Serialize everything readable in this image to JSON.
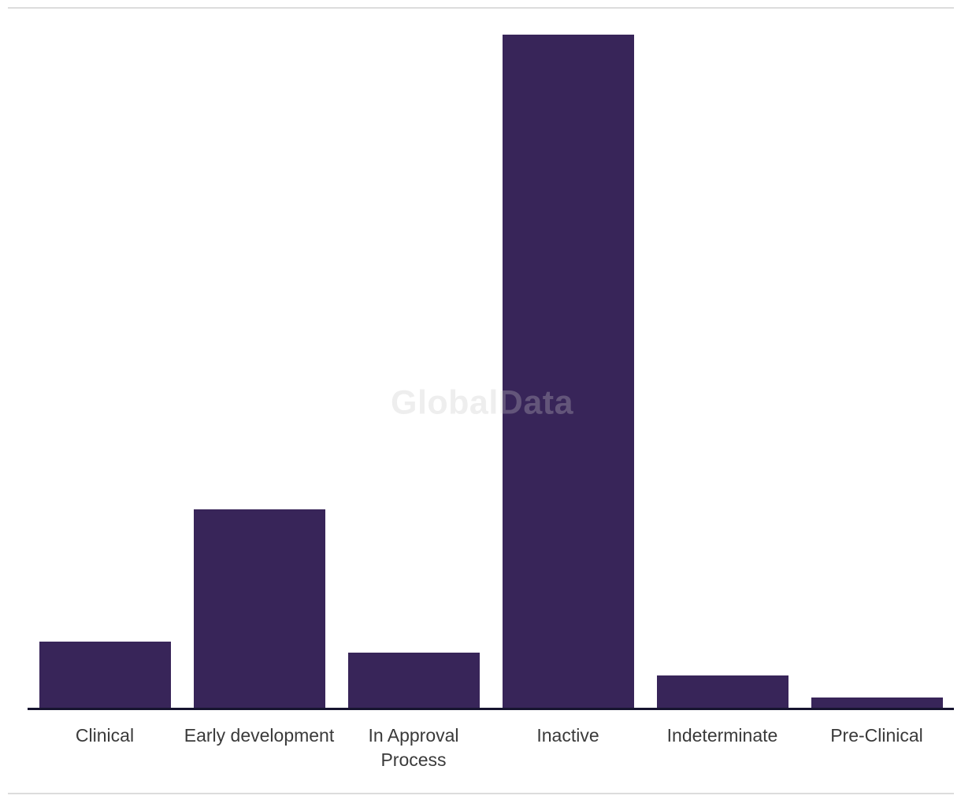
{
  "watermark": "GlobalData",
  "colors": {
    "bar": "#382559",
    "axis": "#16142f",
    "divider": "#dcdcdc",
    "label": "#3a3a3a",
    "watermark": "rgba(200,200,200,0.3)",
    "background": "#ffffff"
  },
  "chart_data": {
    "type": "bar",
    "categories": [
      "Clinical",
      "Early development",
      "In Approval Process",
      "Inactive",
      "Indeterminate",
      "Pre-Clinical"
    ],
    "values": [
      84,
      252,
      70,
      855,
      41,
      13
    ],
    "title": "",
    "xlabel": "",
    "ylabel": "",
    "ylim": [
      0,
      855
    ],
    "grid": false,
    "legend": false,
    "note": "No y-axis, tick labels, or data labels are visible; values are relative units estimated from bar pixel heights."
  }
}
